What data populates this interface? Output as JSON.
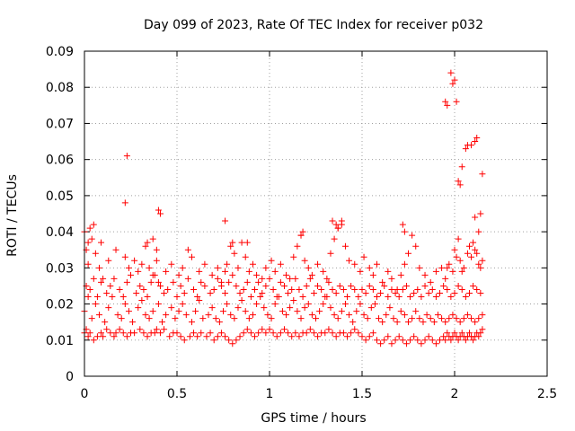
{
  "chart_data": {
    "type": "scatter",
    "title": "Day 099 of 2023, Rate Of TEC Index for receiver p032",
    "xlabel": "GPS time / hours",
    "ylabel": "ROTI / TECUs",
    "xlim": [
      0,
      2.5
    ],
    "ylim": [
      0,
      0.09
    ],
    "x_ticks": [
      0,
      0.5,
      1,
      1.5,
      2,
      2.5
    ],
    "x_tick_labels": [
      "0",
      "0.5",
      "1",
      "1.5",
      "2",
      "2.5"
    ],
    "y_ticks": [
      0,
      0.01,
      0.02,
      0.03,
      0.04,
      0.05,
      0.06,
      0.07,
      0.08,
      0.09
    ],
    "y_tick_labels": [
      "0",
      "0.01",
      "0.02",
      "0.03",
      "0.04",
      "0.05",
      "0.06",
      "0.07",
      "0.08",
      "0.09"
    ],
    "grid": true,
    "marker": "+",
    "marker_color": "#ff0000",
    "series": [
      {
        "x": [
          0.0,
          0.01,
          0.02,
          0.03,
          0.05,
          0.07,
          0.09,
          0.1,
          0.12,
          0.14,
          0.16,
          0.17,
          0.19,
          0.21,
          0.23,
          0.25,
          0.27,
          0.3,
          0.32,
          0.34,
          0.36,
          0.38,
          0.39,
          0.41,
          0.43,
          0.46,
          0.48,
          0.5,
          0.52,
          0.54,
          0.57,
          0.59,
          0.61,
          0.63,
          0.66,
          0.68,
          0.7,
          0.72,
          0.74,
          0.76,
          0.78,
          0.8,
          0.82,
          0.84,
          0.86,
          0.88,
          0.9,
          0.92,
          0.94,
          0.96,
          0.98,
          1.0,
          1.02,
          1.04,
          1.06,
          1.08,
          1.1,
          1.12,
          1.14,
          1.16,
          1.18,
          1.2,
          1.22,
          1.24,
          1.26,
          1.28,
          1.3,
          1.32,
          1.34,
          1.36,
          1.38,
          1.4,
          1.42,
          1.44,
          1.46,
          1.48,
          1.5,
          1.52,
          1.54,
          1.56,
          1.58,
          1.6,
          1.62,
          1.64,
          1.66,
          1.68,
          1.7,
          1.72,
          1.74,
          1.76,
          1.78,
          1.8,
          1.82,
          1.84,
          1.86,
          1.88,
          1.9,
          1.92,
          1.94,
          1.95,
          1.96,
          1.97,
          1.98,
          1.99,
          2.0,
          2.01,
          2.02,
          2.03,
          2.04,
          2.05,
          2.06,
          2.07,
          2.08,
          2.09,
          2.1,
          2.11,
          2.12,
          2.13,
          2.14,
          2.15,
          0.0,
          0.02,
          0.04,
          0.06,
          0.08,
          0.11,
          0.13,
          0.15,
          0.18,
          0.2,
          0.22,
          0.24,
          0.26,
          0.29,
          0.31,
          0.33,
          0.35,
          0.37,
          0.4,
          0.42,
          0.44,
          0.47,
          0.49,
          0.51,
          0.53,
          0.55,
          0.58,
          0.6,
          0.62,
          0.64,
          0.67,
          0.69,
          0.71,
          0.73,
          0.75,
          0.77,
          0.79,
          0.81,
          0.83,
          0.85,
          0.87,
          0.89,
          0.91,
          0.93,
          0.95,
          0.97,
          0.99,
          1.01,
          1.03,
          1.05,
          1.07,
          1.09,
          1.11,
          1.13,
          1.15,
          1.17,
          1.19,
          1.21,
          1.23,
          1.25,
          1.27,
          1.29,
          1.31,
          1.33,
          1.35,
          1.37,
          1.39,
          1.41,
          1.43,
          1.45,
          1.47,
          1.49,
          1.51,
          1.53,
          1.55,
          1.57,
          1.59,
          1.61,
          1.63,
          1.65,
          1.67,
          1.69,
          1.71,
          1.73,
          1.75,
          1.77,
          1.79,
          1.81,
          1.83,
          1.85,
          1.87,
          1.89,
          1.91,
          1.93,
          1.95,
          1.97,
          1.99,
          2.01,
          2.03,
          2.05,
          2.07,
          2.09,
          2.11,
          2.13,
          2.15,
          0.01,
          0.03,
          0.05,
          0.07,
          0.09,
          0.12,
          0.14,
          0.16,
          0.19,
          0.21,
          0.23,
          0.25,
          0.28,
          0.3,
          0.32,
          0.34,
          0.36,
          0.38,
          0.41,
          0.43,
          0.45,
          0.48,
          0.5,
          0.52,
          0.54,
          0.56,
          0.59,
          0.61,
          0.63,
          0.65,
          0.68,
          0.7,
          0.72,
          0.74,
          0.76,
          0.78,
          0.8,
          0.82,
          0.84,
          0.86,
          0.88,
          0.9,
          0.92,
          0.94,
          0.96,
          0.98,
          1.0,
          1.02,
          1.04,
          1.06,
          1.08,
          1.1,
          1.12,
          1.14,
          1.16,
          1.18,
          1.2,
          1.22,
          1.24,
          1.26,
          1.28,
          1.3,
          1.32,
          1.34,
          1.36,
          1.38,
          1.4,
          1.42,
          1.44,
          1.46,
          1.48,
          1.5,
          1.52,
          1.54,
          1.56,
          1.58,
          1.6,
          1.62,
          1.64,
          1.66,
          1.68,
          1.7,
          1.72,
          1.74,
          1.76,
          1.78,
          1.8,
          1.82,
          1.84,
          1.86,
          1.88,
          1.9,
          1.92,
          1.94,
          1.96,
          1.98,
          2.0,
          2.02,
          2.04,
          2.06,
          2.08,
          2.1,
          2.12,
          2.14,
          0.0,
          0.01,
          0.02,
          0.04,
          0.06,
          0.08,
          0.1,
          0.13,
          0.17,
          0.22,
          0.24,
          0.27,
          0.29,
          0.31,
          0.33,
          0.35,
          0.37,
          0.39,
          0.4,
          0.44,
          0.47,
          0.51,
          0.53,
          0.56,
          0.58,
          0.62,
          0.65,
          0.69,
          0.72,
          0.74,
          0.76,
          0.77,
          0.79,
          0.81,
          0.83,
          0.85,
          0.87,
          0.89,
          0.91,
          0.93,
          0.96,
          0.98,
          1.01,
          1.03,
          1.06,
          1.09,
          1.11,
          1.13,
          1.15,
          1.17,
          1.19,
          1.21,
          1.23,
          1.26,
          1.29,
          1.31,
          1.33,
          1.35,
          1.37,
          1.39,
          1.41,
          1.43,
          1.46,
          1.49,
          1.51,
          1.54,
          1.56,
          1.58,
          1.61,
          1.64,
          1.66,
          1.69,
          1.71,
          1.73,
          1.75,
          1.77,
          1.79,
          1.81,
          1.84,
          1.87,
          1.9,
          1.93,
          1.95,
          1.96,
          1.97,
          1.99,
          2.0,
          2.01,
          2.02,
          2.03,
          2.04,
          2.05,
          2.07,
          2.08,
          2.09,
          2.1,
          2.11,
          2.12,
          2.13,
          2.14,
          2.15,
          0.23,
          0.4,
          0.76,
          0.41,
          0.22,
          0.03,
          0.05,
          0.09,
          0.02,
          0.34,
          0.39,
          0.37,
          0.8,
          0.88,
          1.17,
          1.18,
          1.34,
          1.36,
          1.37,
          1.39,
          1.72,
          1.73,
          1.95,
          1.96,
          1.98,
          1.99,
          2.0,
          2.01,
          2.02,
          2.03,
          2.04,
          2.06,
          2.07,
          2.09,
          2.11,
          2.12,
          2.14,
          2.15,
          2.13,
          2.11
        ],
        "y": [
          0.012,
          0.013,
          0.011,
          0.012,
          0.01,
          0.011,
          0.012,
          0.011,
          0.013,
          0.012,
          0.011,
          0.012,
          0.013,
          0.012,
          0.011,
          0.012,
          0.012,
          0.013,
          0.012,
          0.011,
          0.012,
          0.012,
          0.013,
          0.012,
          0.013,
          0.011,
          0.012,
          0.012,
          0.011,
          0.01,
          0.011,
          0.012,
          0.011,
          0.012,
          0.011,
          0.012,
          0.01,
          0.011,
          0.012,
          0.011,
          0.01,
          0.009,
          0.01,
          0.011,
          0.012,
          0.013,
          0.012,
          0.011,
          0.012,
          0.013,
          0.012,
          0.013,
          0.012,
          0.011,
          0.012,
          0.013,
          0.012,
          0.011,
          0.012,
          0.011,
          0.012,
          0.012,
          0.013,
          0.012,
          0.011,
          0.012,
          0.012,
          0.013,
          0.012,
          0.011,
          0.012,
          0.012,
          0.011,
          0.012,
          0.013,
          0.012,
          0.011,
          0.01,
          0.011,
          0.012,
          0.01,
          0.009,
          0.01,
          0.011,
          0.009,
          0.01,
          0.011,
          0.01,
          0.009,
          0.01,
          0.011,
          0.01,
          0.009,
          0.01,
          0.011,
          0.01,
          0.009,
          0.01,
          0.011,
          0.01,
          0.012,
          0.011,
          0.01,
          0.011,
          0.012,
          0.011,
          0.01,
          0.011,
          0.012,
          0.011,
          0.01,
          0.011,
          0.012,
          0.011,
          0.01,
          0.011,
          0.012,
          0.011,
          0.012,
          0.013,
          0.018,
          0.022,
          0.016,
          0.02,
          0.017,
          0.015,
          0.019,
          0.022,
          0.017,
          0.016,
          0.02,
          0.018,
          0.015,
          0.019,
          0.021,
          0.017,
          0.016,
          0.018,
          0.02,
          0.015,
          0.017,
          0.019,
          0.016,
          0.018,
          0.02,
          0.017,
          0.015,
          0.018,
          0.021,
          0.016,
          0.017,
          0.019,
          0.016,
          0.015,
          0.018,
          0.02,
          0.017,
          0.016,
          0.019,
          0.021,
          0.018,
          0.016,
          0.017,
          0.02,
          0.022,
          0.019,
          0.017,
          0.016,
          0.02,
          0.022,
          0.018,
          0.017,
          0.019,
          0.021,
          0.018,
          0.016,
          0.019,
          0.02,
          0.017,
          0.016,
          0.018,
          0.02,
          0.022,
          0.019,
          0.017,
          0.016,
          0.018,
          0.02,
          0.017,
          0.015,
          0.018,
          0.02,
          0.017,
          0.016,
          0.019,
          0.02,
          0.016,
          0.015,
          0.017,
          0.019,
          0.016,
          0.015,
          0.018,
          0.017,
          0.015,
          0.016,
          0.018,
          0.016,
          0.015,
          0.017,
          0.016,
          0.015,
          0.017,
          0.016,
          0.015,
          0.016,
          0.017,
          0.016,
          0.015,
          0.016,
          0.017,
          0.016,
          0.015,
          0.016,
          0.017,
          0.025,
          0.024,
          0.027,
          0.022,
          0.026,
          0.023,
          0.025,
          0.027,
          0.024,
          0.022,
          0.026,
          0.028,
          0.023,
          0.025,
          0.024,
          0.022,
          0.026,
          0.028,
          0.025,
          0.023,
          0.024,
          0.026,
          0.022,
          0.025,
          0.023,
          0.027,
          0.024,
          0.022,
          0.026,
          0.025,
          0.023,
          0.024,
          0.027,
          0.025,
          0.023,
          0.026,
          0.028,
          0.025,
          0.023,
          0.024,
          0.026,
          0.022,
          0.024,
          0.026,
          0.023,
          0.025,
          0.027,
          0.024,
          0.022,
          0.026,
          0.025,
          0.023,
          0.024,
          0.027,
          0.024,
          0.022,
          0.025,
          0.027,
          0.023,
          0.025,
          0.024,
          0.022,
          0.026,
          0.024,
          0.023,
          0.025,
          0.024,
          0.022,
          0.025,
          0.024,
          0.022,
          0.024,
          0.023,
          0.025,
          0.024,
          0.022,
          0.023,
          0.025,
          0.022,
          0.024,
          0.023,
          0.022,
          0.024,
          0.025,
          0.022,
          0.023,
          0.024,
          0.022,
          0.025,
          0.023,
          0.024,
          0.022,
          0.023,
          0.025,
          0.024,
          0.022,
          0.023,
          0.025,
          0.024,
          0.022,
          0.023,
          0.025,
          0.024,
          0.023,
          0.04,
          0.035,
          0.031,
          0.038,
          0.034,
          0.03,
          0.027,
          0.032,
          0.035,
          0.033,
          0.03,
          0.032,
          0.029,
          0.031,
          0.036,
          0.03,
          0.028,
          0.032,
          0.026,
          0.029,
          0.031,
          0.028,
          0.03,
          0.035,
          0.033,
          0.029,
          0.031,
          0.028,
          0.03,
          0.026,
          0.029,
          0.031,
          0.036,
          0.034,
          0.03,
          0.037,
          0.033,
          0.029,
          0.031,
          0.028,
          0.027,
          0.03,
          0.032,
          0.029,
          0.031,
          0.028,
          0.027,
          0.033,
          0.036,
          0.039,
          0.032,
          0.03,
          0.028,
          0.031,
          0.029,
          0.027,
          0.034,
          0.038,
          0.041,
          0.042,
          0.036,
          0.032,
          0.031,
          0.029,
          0.033,
          0.03,
          0.028,
          0.031,
          0.026,
          0.029,
          0.027,
          0.024,
          0.028,
          0.031,
          0.034,
          0.039,
          0.036,
          0.03,
          0.028,
          0.026,
          0.029,
          0.03,
          0.027,
          0.03,
          0.031,
          0.029,
          0.035,
          0.033,
          0.038,
          0.032,
          0.029,
          0.03,
          0.034,
          0.036,
          0.033,
          0.037,
          0.035,
          0.034,
          0.031,
          0.03,
          0.032,
          0.061,
          0.046,
          0.043,
          0.045,
          0.048,
          0.041,
          0.042,
          0.037,
          0.037,
          0.037,
          0.035,
          0.038,
          0.037,
          0.037,
          0.039,
          0.04,
          0.043,
          0.042,
          0.041,
          0.043,
          0.042,
          0.04,
          0.076,
          0.075,
          0.084,
          0.081,
          0.082,
          0.076,
          0.054,
          0.053,
          0.058,
          0.063,
          0.064,
          0.064,
          0.065,
          0.066,
          0.045,
          0.056,
          0.04,
          0.044
        ]
      }
    ]
  }
}
